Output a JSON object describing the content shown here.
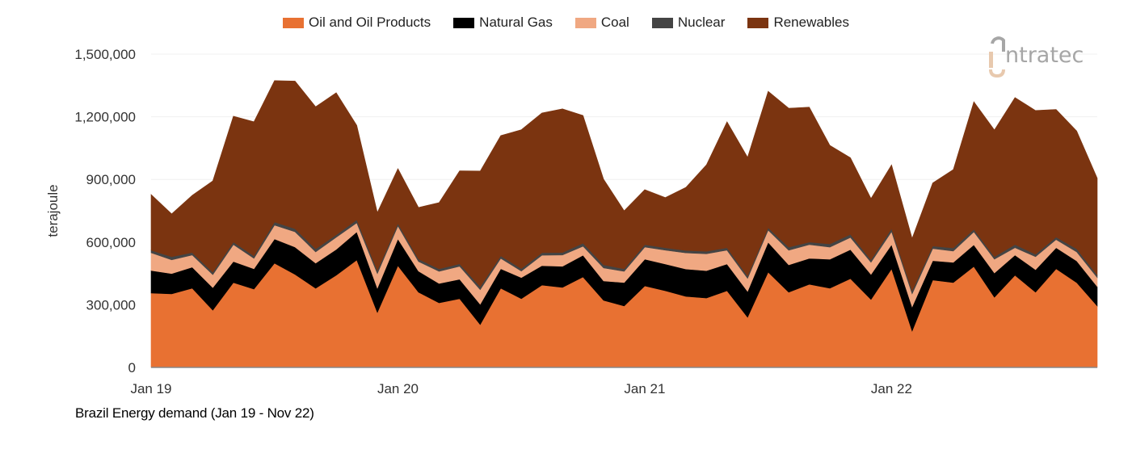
{
  "chart_data": {
    "type": "area",
    "stacked": true,
    "title": "",
    "caption": "Brazil Energy demand (Jan 19 - Nov 22)",
    "xlabel": "",
    "ylabel": "terajoule",
    "ylim": [
      0,
      1500000
    ],
    "yticks": [
      0,
      300000,
      600000,
      900000,
      1200000,
      1500000
    ],
    "ytick_labels": [
      "0",
      "300,000",
      "600,000",
      "900,000",
      "1,200,000",
      "1,500,000"
    ],
    "xtick_labels": [
      {
        "label": "Jan 19",
        "month": "2019-01"
      },
      {
        "label": "Jan 20",
        "month": "2020-01"
      },
      {
        "label": "Jan 21",
        "month": "2021-01"
      },
      {
        "label": "Jan 22",
        "month": "2022-01"
      }
    ],
    "x_start": "2019-01",
    "x_end": "2022-11",
    "grid": true,
    "legend_placement": "top",
    "series": [
      {
        "name": "Oil and Oil Products",
        "color": "#E87132",
        "values": [
          356000,
          352000,
          379000,
          274000,
          406000,
          375000,
          499000,
          445000,
          379000,
          441000,
          514000,
          263000,
          487000,
          360000,
          309000,
          329000,
          205000,
          379000,
          329000,
          394000,
          383000,
          433000,
          321000,
          294000,
          390000,
          367000,
          340000,
          332000,
          367000,
          240000,
          456000,
          360000,
          398000,
          379000,
          425000,
          325000,
          472000,
          174000,
          418000,
          406000,
          483000,
          336000,
          441000,
          360000,
          472000,
          406000,
          294000
        ]
      },
      {
        "name": "Natural Gas",
        "color": "#000000",
        "values": [
          108000,
          97000,
          101000,
          108000,
          101000,
          97000,
          116000,
          131000,
          120000,
          124000,
          135000,
          116000,
          128000,
          101000,
          93000,
          93000,
          97000,
          93000,
          101000,
          93000,
          101000,
          104000,
          93000,
          112000,
          128000,
          128000,
          131000,
          131000,
          128000,
          124000,
          143000,
          131000,
          124000,
          139000,
          139000,
          120000,
          116000,
          116000,
          93000,
          97000,
          104000,
          116000,
          97000,
          108000,
          101000,
          104000,
          93000
        ]
      },
      {
        "name": "Coal",
        "color": "#F0A882",
        "values": [
          85000,
          66000,
          58000,
          62000,
          81000,
          50000,
          66000,
          73000,
          54000,
          58000,
          43000,
          70000,
          62000,
          46000,
          58000,
          62000,
          70000,
          50000,
          31000,
          50000,
          54000,
          43000,
          62000,
          54000,
          58000,
          66000,
          77000,
          81000,
          66000,
          62000,
          58000,
          70000,
          66000,
          58000,
          58000,
          58000,
          62000,
          62000,
          58000,
          54000,
          62000,
          66000,
          35000,
          62000,
          39000,
          43000,
          43000
        ]
      },
      {
        "name": "Nuclear",
        "color": "#444444",
        "values": [
          12000,
          15000,
          12000,
          12000,
          12000,
          12000,
          15000,
          15000,
          15000,
          12000,
          15000,
          15000,
          12000,
          12000,
          12000,
          12000,
          15000,
          12000,
          12000,
          12000,
          12000,
          15000,
          15000,
          12000,
          12000,
          12000,
          12000,
          12000,
          12000,
          12000,
          12000,
          15000,
          12000,
          15000,
          15000,
          12000,
          15000,
          15000,
          12000,
          15000,
          12000,
          12000,
          15000,
          12000,
          12000,
          15000,
          12000
        ]
      },
      {
        "name": "Renewables",
        "color": "#7B3410",
        "values": [
          267000,
          205000,
          274000,
          437000,
          603000,
          642000,
          677000,
          707000,
          680000,
          680000,
          452000,
          278000,
          263000,
          247000,
          317000,
          445000,
          553000,
          576000,
          665000,
          669000,
          688000,
          611000,
          410000,
          278000,
          263000,
          240000,
          302000,
          414000,
          603000,
          568000,
          653000,
          665000,
          646000,
          472000,
          367000,
          294000,
          305000,
          251000,
          302000,
          375000,
          611000,
          607000,
          704000,
          688000,
          611000,
          564000,
          464000
        ]
      }
    ]
  },
  "logo": {
    "text": "intratec",
    "colors": {
      "text": "#A6A6A6",
      "accent": "#E8C9AE"
    }
  }
}
